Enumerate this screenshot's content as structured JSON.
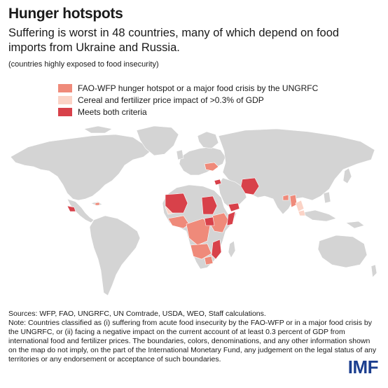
{
  "title": "Hunger hotspots",
  "subtitle": "Suffering is worst in 48 countries, many of which depend on food imports from Ukraine and Russia.",
  "note": "(countries highly exposed to food insecurity)",
  "legend": [
    {
      "label": "FAO-WFP hunger hotspot or a major food crisis by the UNGRFC",
      "color": "#ef8a7a"
    },
    {
      "label": "Cereal and fertilizer price impact of >0.3% of GDP",
      "color": "#fbd3c6"
    },
    {
      "label": "Meets both criteria",
      "color": "#d8414a"
    }
  ],
  "colors": {
    "land": "#d4d4d4",
    "border": "#ffffff",
    "brand": "#1b3e8f"
  },
  "sources": "Sources: WFP, FAO, UNGRFC, UN Comtrade, USDA, WEO, Staff calculations.",
  "footnote": "Note: Countries classified as (i) suffering from acute food insecurity by the FAO-WFP or in a major food crisis by the UNGRFC, or (ii) facing a negative impact on the current account of at least 0.3 percent of GDP from international food and fertilizer prices. The boundaries, colors, denominations, and any other information shown on the map do not imply, on the part of the International Monetary Fund, any judgement on the legal status of any territories or any endorsement or acceptance of such boundaries.",
  "logo": "IMF"
}
